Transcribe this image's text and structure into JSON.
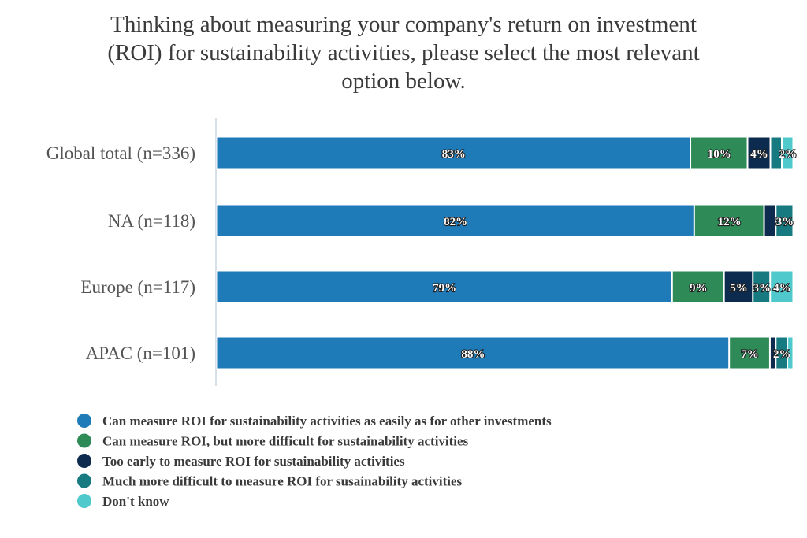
{
  "chart_data": {
    "type": "bar",
    "orientation": "horizontal",
    "stacked": true,
    "title": "Thinking about measuring your company's return on investment (ROI) for sustainability activities, please select the most relevant option below.",
    "title_lines": [
      "Thinking about measuring your company's return on investment",
      "(ROI) for sustainability activities, please select the most relevant",
      "option below."
    ],
    "categories": [
      "Global total (n=336)",
      "NA (n=118)",
      "Europe (n=117)",
      "APAC (n=101)"
    ],
    "series": [
      {
        "name": "Can measure ROI for sustainability activities as easily as for other investments",
        "color": "#1f7ab8",
        "values": [
          83,
          82,
          79,
          88
        ],
        "labels": [
          "83%",
          "82%",
          "79%",
          "88%"
        ]
      },
      {
        "name": "Can measure ROI, but more difficult for sustainability activities",
        "color": "#2e8b57",
        "values": [
          10,
          12,
          9,
          7
        ],
        "labels": [
          "10%",
          "12%",
          "9%",
          "7%"
        ]
      },
      {
        "name": "Too early to measure ROI for sustainability activities",
        "color": "#0d2b4e",
        "values": [
          4,
          2,
          5,
          1
        ],
        "labels": [
          "4%",
          "",
          "5%",
          ""
        ]
      },
      {
        "name": "Much more difficult to measure ROI for susainability activities",
        "color": "#167a80",
        "values": [
          2,
          3,
          3,
          2
        ],
        "labels": [
          "",
          "3%",
          "3%",
          "2%"
        ]
      },
      {
        "name": "Don't know",
        "color": "#4fc9cc",
        "values": [
          2,
          0,
          4,
          1
        ],
        "labels": [
          "2%",
          "",
          "4%",
          ""
        ]
      }
    ],
    "xlim": [
      0,
      100
    ],
    "xlabel": "",
    "ylabel": "",
    "grid": false,
    "legend_position": "bottom-left"
  }
}
